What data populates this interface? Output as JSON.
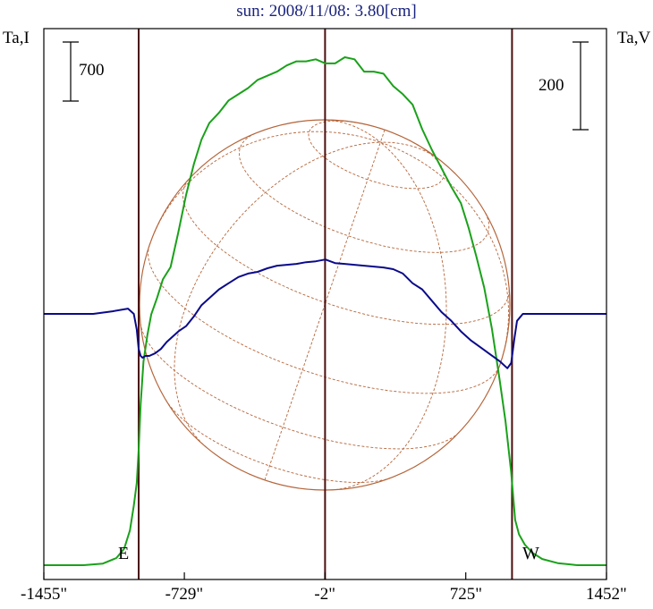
{
  "title": "sun: 2008/11/08: 3.80[cm]",
  "left_axis_label": "Ta,I",
  "right_axis_label": "Ta,V",
  "left_scale_label": "700",
  "right_scale_label": "200",
  "east_label": "E",
  "west_label": "W",
  "colors": {
    "intensity": "#1aa11a",
    "polarization": "#0a0a8a",
    "vertical_lines": "#4a0f0f",
    "disk": "#b5653a",
    "frame": "#000000"
  },
  "chart_data": {
    "type": "line",
    "title": "sun: 2008/11/08: 3.80[cm]",
    "xlabel": "",
    "ylabel_left": "Ta,I",
    "ylabel_right": "Ta,V",
    "x_ticks": [
      "-1455\"",
      "-729\"",
      "-2\"",
      "725\"",
      "1452\""
    ],
    "x_tick_values": [
      -1455,
      -729,
      -2,
      725,
      1452
    ],
    "xlim": [
      -1455,
      1452
    ],
    "vertical_markers_arcsec": [
      -965,
      -2,
      964
    ],
    "limb_labels": [
      "E",
      "W"
    ],
    "scale_bars": [
      {
        "side": "left",
        "label": "700"
      },
      {
        "side": "right",
        "label": "200"
      }
    ],
    "series": [
      {
        "name": "Ta,I",
        "color": "#1aa11a",
        "axis": "left",
        "x": [
          -1455,
          -1350,
          -1250,
          -1150,
          -1080,
          -1040,
          -1010,
          -990,
          -975,
          -965,
          -955,
          -940,
          -920,
          -900,
          -870,
          -840,
          -800,
          -760,
          -720,
          -680,
          -640,
          -600,
          -550,
          -500,
          -450,
          -400,
          -350,
          -300,
          -250,
          -200,
          -150,
          -100,
          -50,
          0,
          50,
          100,
          150,
          200,
          250,
          300,
          350,
          400,
          450,
          500,
          550,
          600,
          650,
          700,
          740,
          780,
          820,
          860,
          900,
          930,
          960,
          980,
          1000,
          1030,
          1070,
          1120,
          1200,
          1300,
          1452
        ],
        "y": [
          0,
          0,
          0,
          8,
          35,
          80,
          170,
          290,
          400,
          560,
          780,
          990,
          1120,
          1220,
          1300,
          1390,
          1450,
          1620,
          1800,
          1950,
          2070,
          2150,
          2200,
          2260,
          2290,
          2320,
          2360,
          2380,
          2400,
          2430,
          2450,
          2450,
          2460,
          2440,
          2440,
          2470,
          2460,
          2400,
          2400,
          2390,
          2330,
          2290,
          2240,
          2120,
          2020,
          1930,
          1840,
          1760,
          1640,
          1500,
          1350,
          1150,
          900,
          700,
          450,
          220,
          150,
          100,
          60,
          30,
          10,
          0,
          0
        ]
      },
      {
        "name": "Ta,V",
        "color": "#0a0a8a",
        "axis": "right",
        "x": [
          -1455,
          -1200,
          -1100,
          -1020,
          -990,
          -975,
          -965,
          -955,
          -945,
          -930,
          -910,
          -880,
          -850,
          -820,
          -790,
          -760,
          -720,
          -680,
          -640,
          -600,
          -550,
          -500,
          -450,
          -400,
          -350,
          -300,
          -250,
          -200,
          -150,
          -100,
          -50,
          0,
          50,
          100,
          150,
          200,
          250,
          300,
          350,
          400,
          450,
          500,
          550,
          600,
          650,
          700,
          750,
          800,
          850,
          900,
          940,
          960,
          975,
          990,
          1020,
          1100,
          1452
        ],
        "y": [
          0,
          0,
          3,
          6,
          0,
          -18,
          -40,
          -48,
          -50,
          -48,
          -48,
          -45,
          -40,
          -32,
          -26,
          -20,
          -14,
          -3,
          10,
          18,
          28,
          35,
          42,
          46,
          48,
          52,
          55,
          56,
          57,
          59,
          60,
          62,
          58,
          57,
          56,
          55,
          54,
          53,
          51,
          46,
          35,
          28,
          15,
          2,
          -8,
          -20,
          -30,
          -38,
          -46,
          -54,
          -62,
          -56,
          -30,
          -8,
          0,
          0,
          0
        ]
      }
    ]
  }
}
